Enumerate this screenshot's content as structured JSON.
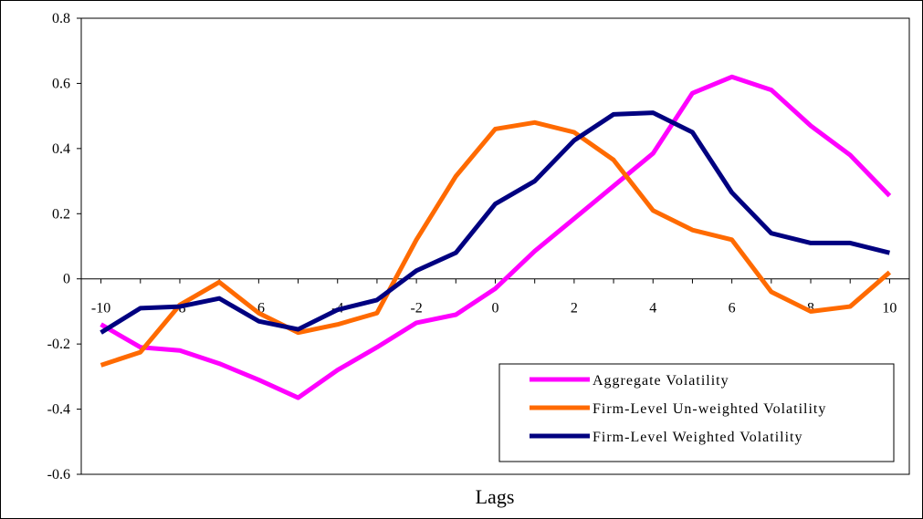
{
  "chart_data": {
    "type": "line",
    "title": "",
    "xlabel": "Lags",
    "ylabel": "",
    "x": [
      -10,
      -9,
      -8,
      -7,
      -6,
      -5,
      -4,
      -3,
      -2,
      -1,
      0,
      1,
      2,
      3,
      4,
      5,
      6,
      7,
      8,
      9,
      10
    ],
    "x_tick_labels": [
      "-10",
      "-8",
      "-6",
      "-4",
      "-2",
      "0",
      "2",
      "4",
      "6",
      "8",
      "10"
    ],
    "x_tick_values": [
      -10,
      -8,
      -6,
      -4,
      -2,
      0,
      2,
      4,
      6,
      8,
      10
    ],
    "y_tick_labels": [
      "0.8",
      "0.6",
      "0.4",
      "0.2",
      "0",
      "-0.2",
      "-0.4",
      "-0.6"
    ],
    "y_tick_values": [
      0.8,
      0.6,
      0.4,
      0.2,
      0,
      -0.2,
      -0.4,
      -0.6
    ],
    "xlim": [
      -10.5,
      10.5
    ],
    "ylim": [
      -0.6,
      0.8
    ],
    "grid": false,
    "legend_position": "bottom-right",
    "series": [
      {
        "name": "Aggregate Volatility",
        "color": "#ff00ff",
        "values": [
          -0.14,
          -0.21,
          -0.22,
          -0.26,
          -0.31,
          -0.365,
          -0.28,
          -0.21,
          -0.135,
          -0.11,
          -0.03,
          0.085,
          0.185,
          0.285,
          0.385,
          0.57,
          0.62,
          0.58,
          0.47,
          0.38,
          0.255
        ]
      },
      {
        "name": "Firm-Level Un-weighted Volatility",
        "color": "#ff6a00",
        "values": [
          -0.265,
          -0.225,
          -0.08,
          -0.01,
          -0.105,
          -0.165,
          -0.14,
          -0.105,
          0.12,
          0.315,
          0.46,
          0.48,
          0.45,
          0.365,
          0.21,
          0.15,
          0.12,
          -0.04,
          -0.1,
          -0.085,
          0.02
        ]
      },
      {
        "name": "Firm-Level Weighted Volatility",
        "color": "#000080",
        "values": [
          -0.165,
          -0.09,
          -0.085,
          -0.06,
          -0.13,
          -0.155,
          -0.095,
          -0.065,
          0.025,
          0.08,
          0.23,
          0.3,
          0.425,
          0.505,
          0.51,
          0.45,
          0.265,
          0.14,
          0.11,
          0.11,
          0.08
        ]
      }
    ]
  }
}
